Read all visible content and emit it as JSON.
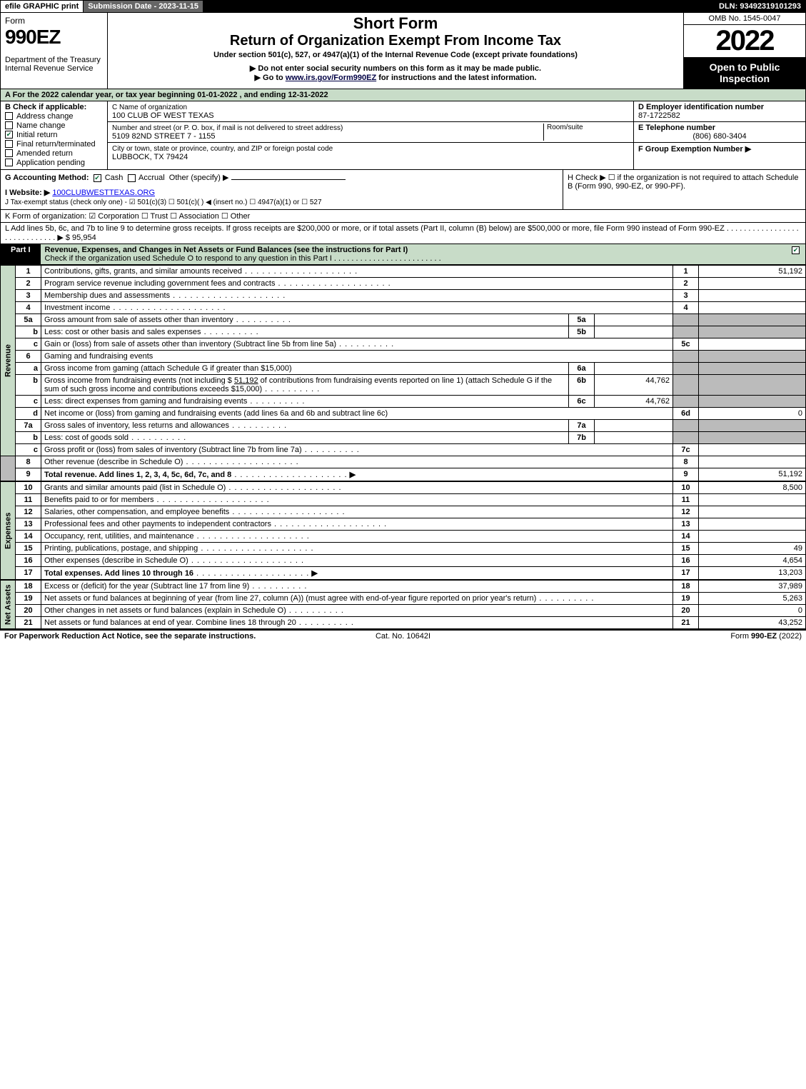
{
  "topbar": {
    "efile": "efile GRAPHIC print",
    "submission": "Submission Date - 2023-11-15",
    "submission_bg": "#5a5a5a",
    "dln": "DLN: 93492319101293"
  },
  "header": {
    "form_word": "Form",
    "form_no": "990EZ",
    "dept": "Department of the Treasury\nInternal Revenue Service",
    "short_form": "Short Form",
    "return_line": "Return of Organization Exempt From Income Tax",
    "under": "Under section 501(c), 527, or 4947(a)(1) of the Internal Revenue Code (except private foundations)",
    "donot": "▶ Do not enter social security numbers on this form as it may be made public.",
    "goto_pre": "▶ Go to ",
    "goto_link": "www.irs.gov/Form990EZ",
    "goto_post": " for instructions and the latest information.",
    "omb": "OMB No. 1545-0047",
    "year": "2022",
    "open": "Open to Public Inspection"
  },
  "row_a": "A  For the 2022 calendar year, or tax year beginning 01-01-2022  , and ending 12-31-2022",
  "col_b": {
    "header": "B  Check if applicable:",
    "items": [
      {
        "label": "Address change",
        "checked": false
      },
      {
        "label": "Name change",
        "checked": false
      },
      {
        "label": "Initial return",
        "checked": true
      },
      {
        "label": "Final return/terminated",
        "checked": false
      },
      {
        "label": "Amended return",
        "checked": false
      },
      {
        "label": "Application pending",
        "checked": false
      }
    ]
  },
  "col_c": {
    "name_label": "C Name of organization",
    "name": "100 CLUB OF WEST TEXAS",
    "street_label": "Number and street (or P. O. box, if mail is not delivered to street address)",
    "room_label": "Room/suite",
    "street": "5109 82ND STREET 7 - 1155",
    "city_label": "City or town, state or province, country, and ZIP or foreign postal code",
    "city": "LUBBOCK, TX  79424"
  },
  "col_d": {
    "ein_label": "D Employer identification number",
    "ein": "87-1722582",
    "tel_label": "E Telephone number",
    "tel": "(806) 680-3404",
    "grp_label": "F Group Exemption Number  ▶"
  },
  "g": {
    "label": "G Accounting Method:",
    "cash": "Cash",
    "accrual": "Accrual",
    "other": "Other (specify) ▶"
  },
  "h": "H  Check ▶  ☐  if the organization is not required to attach Schedule B (Form 990, 990-EZ, or 990-PF).",
  "i": {
    "label": "I Website: ▶",
    "val": "100CLUBWESTTEXAS.ORG"
  },
  "j": "J Tax-exempt status (check only one) -  ☑ 501(c)(3)  ☐ 501(c)(  ) ◀ (insert no.)  ☐ 4947(a)(1) or  ☐ 527",
  "k": "K Form of organization:   ☑ Corporation   ☐ Trust   ☐ Association   ☐ Other",
  "l": {
    "text": "L Add lines 5b, 6c, and 7b to line 9 to determine gross receipts. If gross receipts are $200,000 or more, or if total assets (Part II, column (B) below) are $500,000 or more, file Form 990 instead of Form 990-EZ  .  .  .  .  .  .  .  .  .  .  .  .  .  .  .  .  .  .  .  .  .  .  .  .  .  .  .  .  .  ▶ $ ",
    "val": "95,954"
  },
  "part1": {
    "label": "Part I",
    "title": "Revenue, Expenses, and Changes in Net Assets or Fund Balances (see the instructions for Part I)",
    "sub": "Check if the organization used Schedule O to respond to any question in this Part I  .  .  .  .  .  .  .  .  .  .  .  .  .  .  .  .  .  .  .  .  .  .  .  .  .",
    "checked": true
  },
  "sections": {
    "revenue_label": "Revenue",
    "expenses_label": "Expenses",
    "netassets_label": "Net Assets"
  },
  "lines": {
    "l1": {
      "no": "1",
      "desc": "Contributions, gifts, grants, and similar amounts received",
      "rn": "1",
      "rv": "51,192"
    },
    "l2": {
      "no": "2",
      "desc": "Program service revenue including government fees and contracts",
      "rn": "2",
      "rv": ""
    },
    "l3": {
      "no": "3",
      "desc": "Membership dues and assessments",
      "rn": "3",
      "rv": ""
    },
    "l4": {
      "no": "4",
      "desc": "Investment income",
      "rn": "4",
      "rv": ""
    },
    "l5a": {
      "no": "5a",
      "desc": "Gross amount from sale of assets other than inventory",
      "mn": "5a",
      "mv": ""
    },
    "l5b": {
      "no": "b",
      "desc": "Less: cost or other basis and sales expenses",
      "mn": "5b",
      "mv": ""
    },
    "l5c": {
      "no": "c",
      "desc": "Gain or (loss) from sale of assets other than inventory (Subtract line 5b from line 5a)",
      "rn": "5c",
      "rv": ""
    },
    "l6": {
      "no": "6",
      "desc": "Gaming and fundraising events"
    },
    "l6a": {
      "no": "a",
      "desc": "Gross income from gaming (attach Schedule G if greater than $15,000)",
      "mn": "6a",
      "mv": ""
    },
    "l6b": {
      "no": "b",
      "desc1": "Gross income from fundraising events (not including $ ",
      "amt": "51,192",
      "desc2": " of contributions from fundraising events reported on line 1) (attach Schedule G if the sum of such gross income and contributions exceeds $15,000)",
      "mn": "6b",
      "mv": "44,762"
    },
    "l6c": {
      "no": "c",
      "desc": "Less: direct expenses from gaming and fundraising events",
      "mn": "6c",
      "mv": "44,762"
    },
    "l6d": {
      "no": "d",
      "desc": "Net income or (loss) from gaming and fundraising events (add lines 6a and 6b and subtract line 6c)",
      "rn": "6d",
      "rv": "0"
    },
    "l7a": {
      "no": "7a",
      "desc": "Gross sales of inventory, less returns and allowances",
      "mn": "7a",
      "mv": ""
    },
    "l7b": {
      "no": "b",
      "desc": "Less: cost of goods sold",
      "mn": "7b",
      "mv": ""
    },
    "l7c": {
      "no": "c",
      "desc": "Gross profit or (loss) from sales of inventory (Subtract line 7b from line 7a)",
      "rn": "7c",
      "rv": ""
    },
    "l8": {
      "no": "8",
      "desc": "Other revenue (describe in Schedule O)",
      "rn": "8",
      "rv": ""
    },
    "l9": {
      "no": "9",
      "desc": "Total revenue. Add lines 1, 2, 3, 4, 5c, 6d, 7c, and 8",
      "rn": "9",
      "rv": "51,192",
      "bold": true,
      "arrow": true
    },
    "l10": {
      "no": "10",
      "desc": "Grants and similar amounts paid (list in Schedule O)",
      "rn": "10",
      "rv": "8,500"
    },
    "l11": {
      "no": "11",
      "desc": "Benefits paid to or for members",
      "rn": "11",
      "rv": ""
    },
    "l12": {
      "no": "12",
      "desc": "Salaries, other compensation, and employee benefits",
      "rn": "12",
      "rv": ""
    },
    "l13": {
      "no": "13",
      "desc": "Professional fees and other payments to independent contractors",
      "rn": "13",
      "rv": ""
    },
    "l14": {
      "no": "14",
      "desc": "Occupancy, rent, utilities, and maintenance",
      "rn": "14",
      "rv": ""
    },
    "l15": {
      "no": "15",
      "desc": "Printing, publications, postage, and shipping",
      "rn": "15",
      "rv": "49"
    },
    "l16": {
      "no": "16",
      "desc": "Other expenses (describe in Schedule O)",
      "rn": "16",
      "rv": "4,654"
    },
    "l17": {
      "no": "17",
      "desc": "Total expenses. Add lines 10 through 16",
      "rn": "17",
      "rv": "13,203",
      "bold": true,
      "arrow": true
    },
    "l18": {
      "no": "18",
      "desc": "Excess or (deficit) for the year (Subtract line 17 from line 9)",
      "rn": "18",
      "rv": "37,989"
    },
    "l19": {
      "no": "19",
      "desc": "Net assets or fund balances at beginning of year (from line 27, column (A)) (must agree with end-of-year figure reported on prior year's return)",
      "rn": "19",
      "rv": "5,263"
    },
    "l20": {
      "no": "20",
      "desc": "Other changes in net assets or fund balances (explain in Schedule O)",
      "rn": "20",
      "rv": "0"
    },
    "l21": {
      "no": "21",
      "desc": "Net assets or fund balances at end of year. Combine lines 18 through 20",
      "rn": "21",
      "rv": "43,252"
    }
  },
  "footer": {
    "left": "For Paperwork Reduction Act Notice, see the separate instructions.",
    "mid": "Cat. No. 10642I",
    "right_pre": "Form ",
    "right_form": "990-EZ",
    "right_post": " (2022)"
  },
  "colors": {
    "green_bg": "#c8dcc8",
    "shade": "#bbbbbb"
  }
}
